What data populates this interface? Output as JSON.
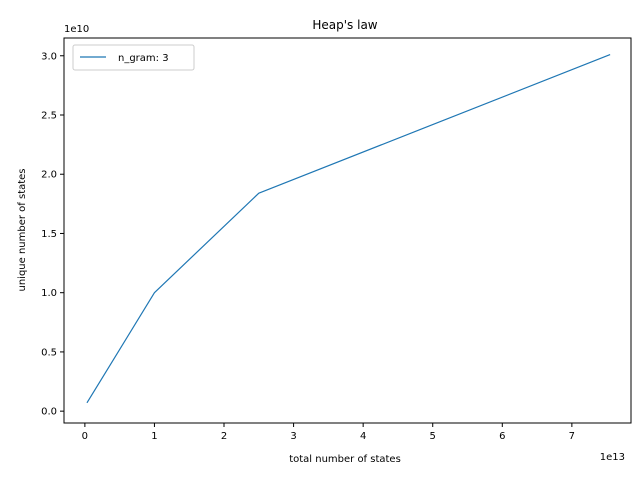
{
  "chart_data": {
    "type": "line",
    "title": "Heap's law",
    "xlabel": "total number of states",
    "ylabel": "unique number of states",
    "x_offset_label": "1e13",
    "y_offset_label": "1e10",
    "xlim": [
      -0.3,
      7.85
    ],
    "ylim": [
      -0.1,
      3.15
    ],
    "x_ticks": [
      0,
      1,
      2,
      3,
      4,
      5,
      6,
      7
    ],
    "x_tick_labels": [
      "0",
      "1",
      "2",
      "3",
      "4",
      "5",
      "6",
      "7"
    ],
    "y_ticks": [
      0.0,
      0.5,
      1.0,
      1.5,
      2.0,
      2.5,
      3.0
    ],
    "y_tick_labels": [
      "0.0",
      "0.5",
      "1.0",
      "1.5",
      "2.0",
      "2.5",
      "3.0"
    ],
    "grid": false,
    "legend_position": "upper-left",
    "series": [
      {
        "name": "n_gram: 3",
        "color": "#1f77b4",
        "x": [
          0.03,
          1.0,
          2.5,
          7.55
        ],
        "y": [
          0.07,
          1.0,
          1.84,
          3.01
        ]
      }
    ]
  }
}
